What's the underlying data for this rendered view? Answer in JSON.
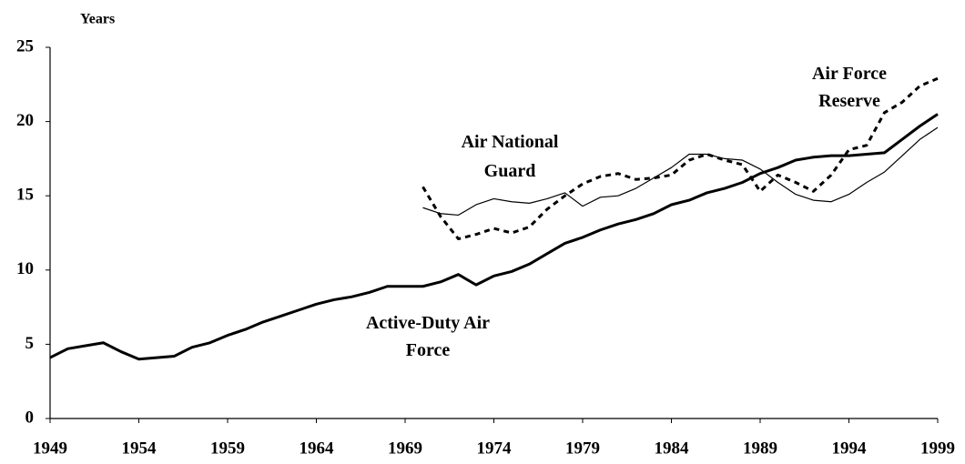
{
  "chart_data": {
    "type": "line",
    "y_label": "Years",
    "x": [
      1949,
      1950,
      1951,
      1952,
      1953,
      1954,
      1955,
      1956,
      1957,
      1958,
      1959,
      1960,
      1961,
      1962,
      1963,
      1964,
      1965,
      1966,
      1967,
      1968,
      1969,
      1970,
      1971,
      1972,
      1973,
      1974,
      1975,
      1976,
      1977,
      1978,
      1979,
      1980,
      1981,
      1982,
      1983,
      1984,
      1985,
      1986,
      1987,
      1988,
      1989,
      1990,
      1991,
      1992,
      1993,
      1994,
      1995,
      1996,
      1997,
      1998,
      1999
    ],
    "series": [
      {
        "name": "Active-Duty Air Force",
        "color": "#000000",
        "linestyle": "solid",
        "linewidth": 3,
        "values": [
          4.1,
          4.7,
          4.9,
          5.1,
          4.5,
          4.0,
          4.1,
          4.2,
          4.8,
          5.1,
          5.6,
          6.0,
          6.5,
          6.9,
          7.3,
          7.7,
          8.0,
          8.2,
          8.5,
          8.9,
          8.9,
          8.9,
          9.2,
          9.7,
          9.0,
          9.6,
          9.9,
          10.4,
          11.1,
          11.8,
          12.2,
          12.7,
          13.1,
          13.4,
          13.8,
          14.4,
          14.7,
          15.2,
          15.5,
          15.9,
          16.5,
          16.9,
          17.4,
          17.6,
          17.7,
          17.7,
          17.8,
          17.9,
          18.8,
          19.7,
          20.5
        ]
      },
      {
        "name": "Air National Guard",
        "color": "#000000",
        "linestyle": "solid",
        "linewidth": 1.2,
        "values": [
          null,
          null,
          null,
          null,
          null,
          null,
          null,
          null,
          null,
          null,
          null,
          null,
          null,
          null,
          null,
          null,
          null,
          null,
          null,
          null,
          null,
          14.2,
          13.8,
          13.7,
          14.4,
          14.8,
          14.6,
          14.5,
          14.8,
          15.2,
          14.3,
          14.9,
          15.0,
          15.5,
          16.2,
          16.9,
          17.8,
          17.8,
          17.5,
          17.4,
          16.8,
          15.9,
          15.1,
          14.7,
          14.6,
          15.1,
          15.9,
          16.6,
          17.7,
          18.8,
          19.6
        ]
      },
      {
        "name": "Air Force Reserve",
        "color": "#000000",
        "linestyle": "dotted",
        "linewidth": 3,
        "values": [
          null,
          null,
          null,
          null,
          null,
          null,
          null,
          null,
          null,
          null,
          null,
          null,
          null,
          null,
          null,
          null,
          null,
          null,
          null,
          null,
          null,
          15.6,
          13.6,
          12.1,
          12.4,
          12.8,
          12.5,
          12.9,
          14.1,
          15.0,
          15.8,
          16.3,
          16.5,
          16.1,
          16.2,
          16.4,
          17.4,
          17.8,
          17.4,
          17.1,
          15.3,
          16.4,
          15.9,
          15.3,
          16.4,
          18.1,
          18.4,
          20.6,
          21.3,
          22.4,
          22.9
        ]
      }
    ],
    "xlim": [
      1949,
      1999
    ],
    "xticks": [
      1949,
      1954,
      1959,
      1964,
      1969,
      1974,
      1979,
      1984,
      1989,
      1994,
      1999
    ],
    "ylim": [
      0,
      25
    ],
    "yticks": [
      0,
      5,
      10,
      15,
      20,
      25
    ]
  }
}
